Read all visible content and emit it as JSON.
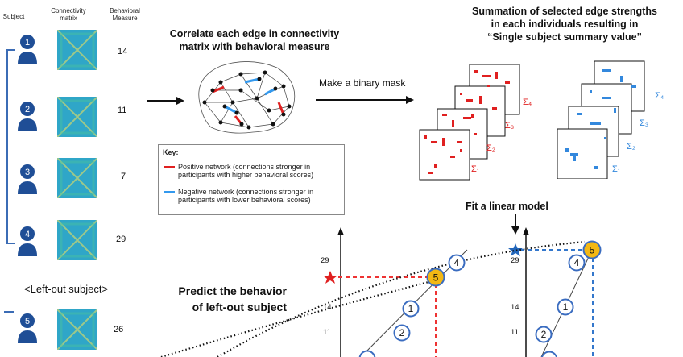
{
  "headers": {
    "subject": "Subject",
    "connectivity_matrix": "Connectivity\nmatrix",
    "behavioral_measure": "Behavioral\nMeasure"
  },
  "subjects": [
    {
      "id": "1",
      "value": "14"
    },
    {
      "id": "2",
      "value": "11"
    },
    {
      "id": "3",
      "value": "7"
    },
    {
      "id": "4",
      "value": "29"
    }
  ],
  "left_out": {
    "label": "<Left-out subject>",
    "id": "5",
    "value": "26"
  },
  "step_correlate": "Correlate each edge in connectivity\nmatrix with behavioral measure",
  "step_mask": "Make a binary mask",
  "step_sum": "Summation of selected edge strengths\nin each individuals resulting in\n“Single subject summary value”",
  "step_fit": "Fit a linear model",
  "step_predict": "Predict the behavior\nof left-out subject",
  "key": {
    "title": "Key:",
    "positive": "Positive network (connections stronger in\nparticipants with higher behavioral scores)",
    "negative": "Negative network (connections stronger in\nparticipants with lower behavioral scores)",
    "positive_color": "#e02020",
    "negative_color": "#3399ee"
  },
  "sigma_red": [
    "Σ₁",
    "Σ₂",
    "Σ₃",
    "Σ₄"
  ],
  "sigma_blue": [
    "Σ₁",
    "Σ₂",
    "Σ₃",
    "Σ₄"
  ],
  "plot_ticks": [
    "29",
    "14",
    "11"
  ],
  "plot_left_points": [
    "4",
    "5",
    "1",
    "2"
  ],
  "plot_right_points": [
    "4",
    "5",
    "1",
    "2"
  ]
}
